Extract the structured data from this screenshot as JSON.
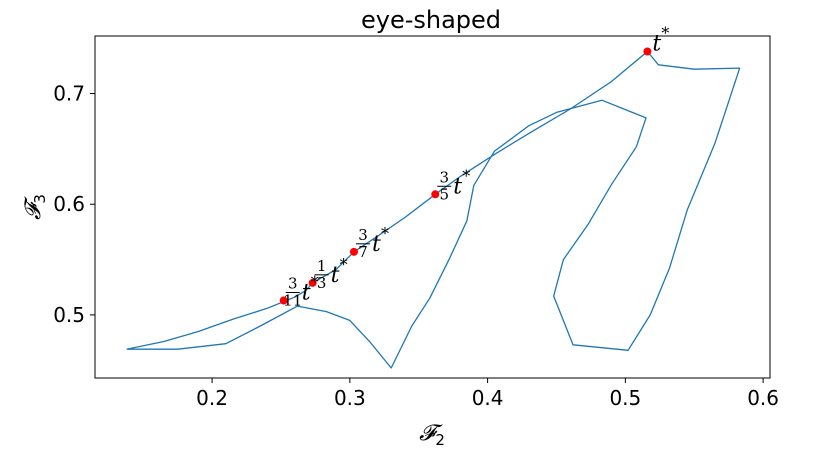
{
  "chart_data": {
    "type": "line",
    "title": "eye-shaped",
    "xlabel": {
      "base": "𝓕",
      "sub": "2"
    },
    "ylabel": {
      "base": "𝓕",
      "sub": "3"
    },
    "xlim": [
      0.115,
      0.605
    ],
    "ylim": [
      0.443,
      0.752
    ],
    "xticks": [
      0.2,
      0.3,
      0.4,
      0.5,
      0.6
    ],
    "xtick_labels": [
      "0.2",
      "0.3",
      "0.4",
      "0.5",
      "0.6"
    ],
    "yticks": [
      0.5,
      0.6,
      0.7
    ],
    "ytick_labels": [
      "0.5",
      "0.6",
      "0.7"
    ],
    "grid": false,
    "colors": {
      "curve": "#1f77b4",
      "marker": "#ff0000"
    },
    "series": [
      {
        "points": [
          [
            0.138,
            0.469
          ],
          [
            0.165,
            0.476
          ],
          [
            0.19,
            0.485
          ],
          [
            0.215,
            0.496
          ],
          [
            0.24,
            0.506
          ],
          [
            0.252,
            0.512
          ],
          [
            0.26,
            0.516
          ],
          [
            0.268,
            0.522
          ],
          [
            0.273,
            0.529
          ],
          [
            0.28,
            0.534
          ],
          [
            0.29,
            0.541
          ],
          [
            0.303,
            0.557
          ],
          [
            0.32,
            0.571
          ],
          [
            0.34,
            0.588
          ],
          [
            0.362,
            0.609
          ],
          [
            0.38,
            0.625
          ],
          [
            0.405,
            0.645
          ],
          [
            0.43,
            0.664
          ],
          [
            0.46,
            0.686
          ],
          [
            0.49,
            0.711
          ],
          [
            0.516,
            0.738
          ],
          [
            0.524,
            0.726
          ],
          [
            0.55,
            0.722
          ],
          [
            0.583,
            0.723
          ],
          [
            0.565,
            0.655
          ],
          [
            0.545,
            0.595
          ],
          [
            0.532,
            0.542
          ],
          [
            0.518,
            0.5
          ],
          [
            0.502,
            0.468
          ],
          [
            0.462,
            0.473
          ],
          [
            0.448,
            0.517
          ],
          [
            0.455,
            0.55
          ],
          [
            0.473,
            0.582
          ],
          [
            0.49,
            0.618
          ],
          [
            0.508,
            0.652
          ],
          [
            0.515,
            0.678
          ],
          [
            0.483,
            0.694
          ],
          [
            0.45,
            0.683
          ],
          [
            0.43,
            0.671
          ],
          [
            0.405,
            0.648
          ],
          [
            0.39,
            0.617
          ],
          [
            0.385,
            0.585
          ],
          [
            0.372,
            0.55
          ],
          [
            0.358,
            0.515
          ],
          [
            0.345,
            0.49
          ],
          [
            0.33,
            0.452
          ],
          [
            0.315,
            0.475
          ],
          [
            0.3,
            0.495
          ],
          [
            0.283,
            0.503
          ],
          [
            0.262,
            0.508
          ],
          [
            0.235,
            0.49
          ],
          [
            0.21,
            0.474
          ],
          [
            0.175,
            0.469
          ],
          [
            0.138,
            0.469
          ]
        ]
      }
    ],
    "markers": [
      {
        "x": 0.516,
        "y": 0.738,
        "frac": null,
        "label": "t",
        "sup": "*"
      },
      {
        "x": 0.362,
        "y": 0.609,
        "frac": [
          "3",
          "5"
        ],
        "label": "t",
        "sup": "*"
      },
      {
        "x": 0.303,
        "y": 0.557,
        "frac": [
          "3",
          "7"
        ],
        "label": "t",
        "sup": "*"
      },
      {
        "x": 0.273,
        "y": 0.529,
        "frac": [
          "1",
          "3"
        ],
        "label": "t",
        "sup": "*"
      },
      {
        "x": 0.252,
        "y": 0.513,
        "frac": [
          "3",
          "11"
        ],
        "label": "t",
        "sup": "*"
      }
    ]
  }
}
